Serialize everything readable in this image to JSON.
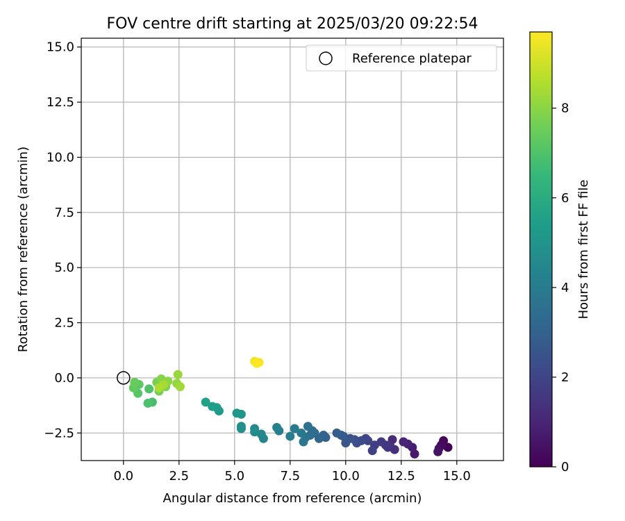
{
  "chart_data": {
    "type": "scatter",
    "title": "FOV centre drift starting at 2025/03/20 09:22:54",
    "xlabel": "Angular distance from reference (arcmin)",
    "ylabel": "Rotation from reference (arcmin)",
    "xlim": [
      -1.9,
      17.1
    ],
    "ylim": [
      -3.75,
      15.4
    ],
    "xticks": [
      0.0,
      2.5,
      5.0,
      7.5,
      10.0,
      12.5,
      15.0
    ],
    "xtick_labels": [
      "0.0",
      "2.5",
      "5.0",
      "7.5",
      "10.0",
      "12.5",
      "15.0"
    ],
    "yticks": [
      -2.5,
      0.0,
      2.5,
      5.0,
      7.5,
      10.0,
      12.5,
      15.0
    ],
    "ytick_labels": [
      "−2.5",
      "0.0",
      "2.5",
      "5.0",
      "7.5",
      "10.0",
      "12.5",
      "15.0"
    ],
    "grid": true,
    "legend": {
      "placement": "top-right",
      "entries": [
        "Reference platepar"
      ]
    },
    "reference_point": {
      "x": 0.0,
      "y": 0.0,
      "label": "Reference platepar"
    },
    "colorbar": {
      "label": "Hours from first FF file",
      "min": 0,
      "max": 9.7,
      "ticks": [
        0,
        2,
        4,
        6,
        8
      ],
      "tick_labels": [
        "0",
        "2",
        "4",
        "6",
        "8"
      ],
      "colormap": "viridis"
    },
    "series": [
      {
        "points": [
          [
            14.6,
            -3.15,
            0.1
          ],
          [
            14.4,
            -2.85,
            0.2
          ],
          [
            14.3,
            -3.05,
            0.3
          ],
          [
            14.2,
            -3.2,
            0.4
          ],
          [
            14.15,
            -3.35,
            0.5
          ],
          [
            13.1,
            -3.45,
            0.7
          ],
          [
            13.0,
            -3.15,
            0.8
          ],
          [
            12.8,
            -3.0,
            0.9
          ],
          [
            12.6,
            -2.9,
            1.0
          ],
          [
            12.1,
            -2.8,
            1.2
          ],
          [
            12.2,
            -3.25,
            1.3
          ],
          [
            12.0,
            -3.1,
            1.4
          ],
          [
            11.9,
            -3.15,
            1.5
          ],
          [
            11.8,
            -3.05,
            1.6
          ],
          [
            11.6,
            -2.9,
            1.7
          ],
          [
            11.3,
            -3.05,
            1.8
          ],
          [
            11.2,
            -3.3,
            1.9
          ],
          [
            11.0,
            -2.85,
            2.0
          ],
          [
            10.9,
            -2.75,
            2.1
          ],
          [
            10.7,
            -2.85,
            2.2
          ],
          [
            10.5,
            -2.95,
            2.3
          ],
          [
            10.4,
            -2.8,
            2.4
          ],
          [
            10.2,
            -2.75,
            2.5
          ],
          [
            10.0,
            -2.95,
            2.6
          ],
          [
            9.9,
            -2.65,
            2.7
          ],
          [
            9.8,
            -2.6,
            2.8
          ],
          [
            9.6,
            -2.5,
            2.9
          ],
          [
            9.1,
            -2.7,
            3.0
          ],
          [
            9.0,
            -2.6,
            3.1
          ],
          [
            8.8,
            -2.75,
            3.2
          ],
          [
            8.6,
            -2.5,
            3.3
          ],
          [
            8.5,
            -2.4,
            3.4
          ],
          [
            8.4,
            -2.6,
            3.5
          ],
          [
            8.3,
            -2.2,
            3.6
          ],
          [
            8.2,
            -2.7,
            3.7
          ],
          [
            8.1,
            -2.9,
            3.8
          ],
          [
            8.0,
            -2.5,
            3.9
          ],
          [
            7.7,
            -2.3,
            4.0
          ],
          [
            7.5,
            -2.65,
            4.1
          ],
          [
            7.0,
            -2.4,
            4.2
          ],
          [
            6.9,
            -2.25,
            4.3
          ],
          [
            6.3,
            -2.75,
            4.4
          ],
          [
            6.2,
            -2.55,
            4.5
          ],
          [
            5.9,
            -2.3,
            4.6
          ],
          [
            5.9,
            -2.45,
            4.7
          ],
          [
            5.3,
            -2.2,
            4.8
          ],
          [
            5.3,
            -2.3,
            4.9
          ],
          [
            5.3,
            -1.65,
            5.0
          ],
          [
            5.1,
            -1.6,
            5.1
          ],
          [
            4.3,
            -1.5,
            5.2
          ],
          [
            4.2,
            -1.35,
            5.3
          ],
          [
            4.0,
            -1.3,
            5.4
          ],
          [
            3.7,
            -1.1,
            5.5
          ],
          [
            1.3,
            -1.1,
            6.8
          ],
          [
            1.1,
            -1.15,
            6.9
          ],
          [
            1.15,
            -0.5,
            7.0
          ],
          [
            0.65,
            -0.7,
            7.1
          ],
          [
            0.7,
            -0.3,
            7.2
          ],
          [
            0.45,
            -0.45,
            7.3
          ],
          [
            0.5,
            -0.2,
            7.4
          ],
          [
            1.6,
            -0.6,
            7.6
          ],
          [
            1.5,
            -0.2,
            7.7
          ],
          [
            1.9,
            -0.4,
            7.8
          ],
          [
            1.7,
            -0.05,
            7.9
          ],
          [
            2.0,
            -0.15,
            8.0
          ],
          [
            2.4,
            -0.25,
            8.1
          ],
          [
            2.45,
            0.15,
            8.2
          ],
          [
            2.55,
            -0.4,
            8.3
          ],
          [
            1.8,
            -0.3,
            8.4
          ],
          [
            1.6,
            -0.45,
            8.5
          ],
          [
            6.0,
            0.7,
            9.4
          ],
          [
            5.9,
            0.75,
            9.5
          ],
          [
            6.1,
            0.7,
            9.6
          ],
          [
            6.0,
            0.65,
            9.7
          ]
        ]
      }
    ]
  }
}
